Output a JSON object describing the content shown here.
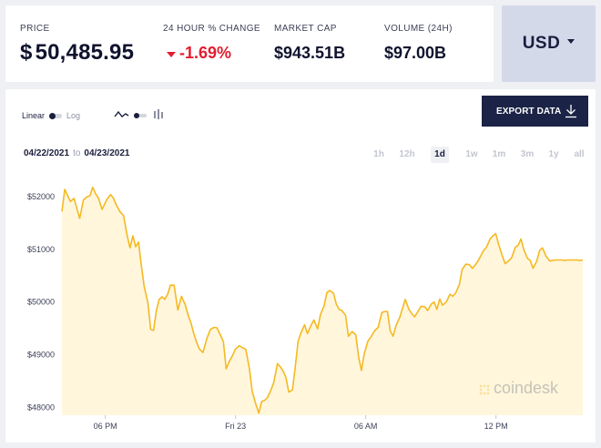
{
  "stats": {
    "price_label": "PRICE",
    "price_symbol": "$",
    "price_value": "50,485.95",
    "change_label": "24 HOUR % CHANGE",
    "change_value": "-1.69%",
    "mcap_label": "MARKET CAP",
    "mcap_value": "$943.51B",
    "volume_label": "VOLUME (24H)",
    "volume_value": "$97.00B"
  },
  "currency": {
    "label": "USD"
  },
  "controls": {
    "linear_label": "Linear",
    "log_label": "Log",
    "export_label": "EXPORT DATA",
    "date_from": "04/22/2021",
    "date_to_word": "to",
    "date_to": "04/23/2021",
    "ranges": [
      "1h",
      "12h",
      "1d",
      "1w",
      "1m",
      "3m",
      "1y",
      "all"
    ],
    "active_range": "1d"
  },
  "watermark": "coindesk",
  "colors": {
    "line": "#f5b921",
    "fill": "#fff6dc",
    "negative": "#e21d2f",
    "dark_button": "#1b2346",
    "currency_bg": "#d4d9ea"
  },
  "chart_data": {
    "type": "area",
    "yticks": [
      "$52000",
      "$51000",
      "$50000",
      "$49000",
      "$48000"
    ],
    "ylim": [
      47850,
      52400
    ],
    "xlim": [
      0,
      24
    ],
    "xticks": [
      {
        "label": "06 PM",
        "x": 2
      },
      {
        "label": "Fri 23",
        "x": 8
      },
      {
        "label": "06 AM",
        "x": 14
      },
      {
        "label": "12 PM",
        "x": 20
      }
    ],
    "series": [
      {
        "x": [
          0.0,
          0.13,
          0.39,
          0.56,
          0.82,
          0.99,
          1.16,
          1.29,
          1.42,
          1.55,
          1.68,
          1.85,
          2.07,
          2.24,
          2.37,
          2.5,
          2.67,
          2.84,
          3.01,
          3.14,
          3.27,
          3.4,
          3.53,
          3.66,
          3.79,
          3.96,
          4.09,
          4.22,
          4.35,
          4.48,
          4.61,
          4.74,
          4.87,
          5.0,
          5.17,
          5.34,
          5.51,
          5.68,
          5.81,
          5.94,
          6.07,
          6.2,
          6.33,
          6.5,
          6.67,
          6.84,
          7.01,
          7.14,
          7.27,
          7.44,
          7.57,
          7.7,
          7.83,
          8.0,
          8.17,
          8.3,
          8.47,
          8.64,
          8.77,
          8.94,
          9.07,
          9.2,
          9.33,
          9.46,
          9.59,
          9.76,
          9.93,
          10.06,
          10.19,
          10.32,
          10.45,
          10.62,
          10.75,
          10.88,
          11.01,
          11.18,
          11.31,
          11.48,
          11.61,
          11.78,
          11.91,
          12.08,
          12.21,
          12.34,
          12.51,
          12.64,
          12.77,
          12.9,
          13.07,
          13.2,
          13.37,
          13.54,
          13.67,
          13.8,
          13.93,
          14.1,
          14.23,
          14.4,
          14.57,
          14.74,
          14.87,
          15.0,
          15.13,
          15.26,
          15.39,
          15.56,
          15.69,
          15.82,
          15.99,
          16.12,
          16.25,
          16.42,
          16.55,
          16.72,
          16.85,
          17.02,
          17.15,
          17.28,
          17.41,
          17.54,
          17.71,
          17.88,
          18.01,
          18.14,
          18.31,
          18.44,
          18.61,
          18.78,
          18.91,
          19.04,
          19.17,
          19.3,
          19.43,
          19.56,
          19.73,
          19.86,
          19.99,
          20.12,
          20.29,
          20.42,
          20.55,
          20.72,
          20.89,
          21.02,
          21.15,
          21.28,
          21.45,
          21.58,
          21.71,
          21.88,
          22.01,
          22.14,
          22.31,
          22.48,
          22.61,
          22.74,
          22.91,
          23.04,
          23.17,
          23.3,
          23.43,
          23.6,
          23.73,
          23.86,
          24.0
        ],
        "y": [
          51720,
          52140,
          51910,
          51970,
          51590,
          51940,
          52000,
          52020,
          52180,
          52060,
          51980,
          51760,
          51950,
          52040,
          51980,
          51850,
          51720,
          51640,
          51260,
          51030,
          51260,
          51050,
          51140,
          50700,
          50300,
          49990,
          49480,
          49460,
          49840,
          50050,
          50100,
          50050,
          50150,
          50320,
          50320,
          49850,
          50110,
          49950,
          49760,
          49610,
          49410,
          49240,
          49110,
          49040,
          49300,
          49480,
          49520,
          49510,
          49400,
          49250,
          48730,
          48860,
          48960,
          49110,
          49170,
          49140,
          49100,
          48740,
          48300,
          48050,
          47890,
          48110,
          48130,
          48180,
          48290,
          48470,
          48830,
          48770,
          48690,
          48570,
          48290,
          48330,
          48760,
          49250,
          49410,
          49570,
          49400,
          49560,
          49660,
          49490,
          49760,
          49930,
          50180,
          50220,
          50170,
          49960,
          49860,
          49840,
          49750,
          49350,
          49440,
          49380,
          48960,
          48700,
          49020,
          49260,
          49330,
          49450,
          49520,
          49800,
          49820,
          49820,
          49450,
          49350,
          49550,
          49700,
          49870,
          50050,
          49860,
          49780,
          49720,
          49830,
          49920,
          49910,
          49840,
          49960,
          50000,
          49860,
          50060,
          49940,
          50000,
          50150,
          50110,
          50170,
          50330,
          50620,
          50720,
          50710,
          50640,
          50700,
          50780,
          50880,
          50980,
          51040,
          51200,
          51260,
          51300,
          51100,
          50880,
          50730,
          50770,
          50840,
          51040,
          51080,
          51200,
          51000,
          50830,
          50790,
          50640,
          50780,
          50980,
          51030,
          50870,
          50780,
          50790,
          50800,
          50800,
          50800,
          50790,
          50800,
          50800,
          50800,
          50800,
          50790,
          50800
        ],
        "__note": ""
      }
    ]
  }
}
